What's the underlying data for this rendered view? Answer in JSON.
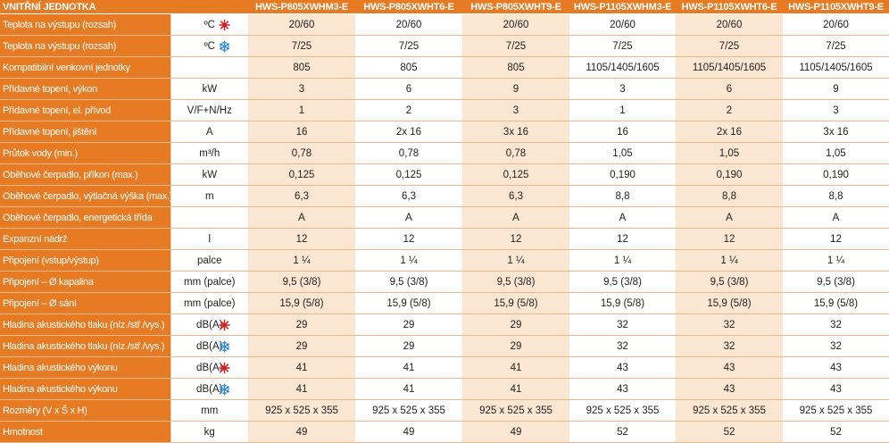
{
  "header": {
    "label": "VNITŘNÍ JEDNOTKA",
    "unit": "",
    "models": [
      "HWS-P805XWHM3-E",
      "HWS-P805XWHT6-E",
      "HWS-P805XWHT9-E",
      "HWS-P1105XWHM3-E",
      "HWS-P1105XWHT6-E",
      "HWS-P1105XWHT9-E"
    ]
  },
  "colors": {
    "orange": "#e77b23",
    "stripe": "#fbe6d2",
    "heat_icon": "#e0181d",
    "cool_icon": "#2f8ad1"
  },
  "rows": [
    {
      "label": "Teplota na výstupu (rozsah)",
      "unit": "ºC",
      "icon": "heat-icon",
      "values": [
        "20/60",
        "20/60",
        "20/60",
        "20/60",
        "20/60",
        "20/60"
      ]
    },
    {
      "label": "Teplota na výstupu (rozsah)",
      "unit": "ºC",
      "icon": "snowflake-icon",
      "values": [
        "7/25",
        "7/25",
        "7/25",
        "7/25",
        "7/25",
        "7/25"
      ]
    },
    {
      "label": "Kompatibilní venkovní jednotky",
      "unit": "",
      "icon": "",
      "values": [
        "805",
        "805",
        "805",
        "1105/1405/1605",
        "1105/1405/1605",
        "1105/1405/1605"
      ]
    },
    {
      "label": "Přídavné topení, výkon",
      "unit": "kW",
      "icon": "",
      "values": [
        "3",
        "6",
        "9",
        "3",
        "6",
        "9"
      ]
    },
    {
      "label": "Přídavné topení, el. přívod",
      "unit": "V/F+N/Hz",
      "icon": "",
      "values": [
        "1",
        "2",
        "3",
        "1",
        "2",
        "3"
      ]
    },
    {
      "label": "Přídavné topení, jištění",
      "unit": "A",
      "icon": "",
      "values": [
        "16",
        "2x 16",
        "3x 16",
        "16",
        "2x 16",
        "3x 16"
      ]
    },
    {
      "label": "Průtok vody (min.)",
      "unit": "m³/h",
      "icon": "",
      "values": [
        "0,78",
        "0,78",
        "0,78",
        "1,05",
        "1,05",
        "1,05"
      ]
    },
    {
      "label": "Oběhové čerpadlo, příkon (max.)",
      "unit": "kW",
      "icon": "",
      "values": [
        "0,125",
        "0,125",
        "0,125",
        "0,190",
        "0,190",
        "0,190"
      ]
    },
    {
      "label": "Oběhové čerpadlo, výtlačná výška (max.)",
      "unit": "m",
      "icon": "",
      "values": [
        "6,3",
        "6,3",
        "6,3",
        "8,8",
        "8,8",
        "8,8"
      ]
    },
    {
      "label": "Oběhové čerpadlo, energetická třída",
      "unit": "",
      "icon": "",
      "values": [
        "A",
        "A",
        "A",
        "A",
        "A",
        "A"
      ]
    },
    {
      "label": "Expanzní nádrž",
      "unit": "l",
      "icon": "",
      "values": [
        "12",
        "12",
        "12",
        "12",
        "12",
        "12"
      ]
    },
    {
      "label": "Připojení (vstup/výstup)",
      "unit": "palce",
      "icon": "",
      "values": [
        "1 ¼",
        "1 ¼",
        "1 ¼",
        "1 ¼",
        "1 ¼",
        "1 ¼"
      ]
    },
    {
      "label": "Připojení – Ø kapalina",
      "unit": "mm (palce)",
      "icon": "",
      "values": [
        "9,5 (3/8)",
        "9,5 (3/8)",
        "9,5 (3/8)",
        "9,5 (3/8)",
        "9,5 (3/8)",
        "9,5 (3/8)"
      ]
    },
    {
      "label": "Připojení – Ø sání",
      "unit": "mm (palce)",
      "icon": "",
      "values": [
        "15,9 (5/8)",
        "15,9 (5/8)",
        "15,9 (5/8)",
        "15,9 (5/8)",
        "15,9 (5/8)",
        "15,9 (5/8)"
      ]
    },
    {
      "label": "Hladina akustického tlaku (níz./stř./vys.)",
      "unit": "dB(A)",
      "icon": "heat-icon",
      "values": [
        "29",
        "29",
        "29",
        "32",
        "32",
        "32"
      ]
    },
    {
      "label": "Hladina akustického tlaku (níz./stř./vys.)",
      "unit": "dB(A)",
      "icon": "snowflake-icon",
      "values": [
        "29",
        "29",
        "29",
        "32",
        "32",
        "32"
      ]
    },
    {
      "label": "Hladina akustického výkonu",
      "unit": "dB(A)",
      "icon": "heat-icon",
      "values": [
        "41",
        "41",
        "41",
        "43",
        "43",
        "43"
      ]
    },
    {
      "label": "Hladina akustického výkonu",
      "unit": "dB(A)",
      "icon": "snowflake-icon",
      "values": [
        "41",
        "41",
        "41",
        "43",
        "43",
        "43"
      ]
    },
    {
      "label": "Rozměry (V x Š x H)",
      "unit": "mm",
      "icon": "",
      "values": [
        "925 x 525 x 355",
        "925 x 525 x 355",
        "925 x 525 x 355",
        "925 x 525 x 355",
        "925 x 525 x 355",
        "925 x 525 x 355"
      ]
    },
    {
      "label": "Hmotnost",
      "unit": "kg",
      "icon": "",
      "values": [
        "49",
        "49",
        "49",
        "52",
        "52",
        "52"
      ]
    }
  ]
}
